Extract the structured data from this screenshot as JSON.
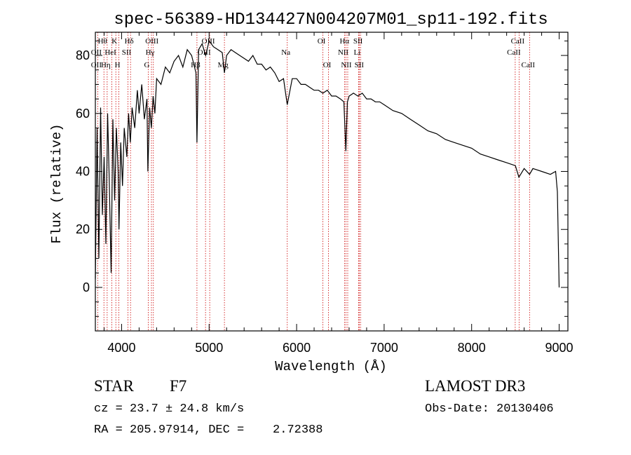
{
  "chart_data": {
    "type": "line",
    "title": "spec-56389-HD134427N004207M01_sp11-192.fits",
    "xlabel": "Wavelength (Å)",
    "ylabel": "Flux (relative)",
    "xlim": [
      3700,
      9100
    ],
    "ylim": [
      -15,
      88
    ],
    "xticks": [
      4000,
      5000,
      6000,
      7000,
      8000,
      9000
    ],
    "yticks": [
      0,
      20,
      40,
      60,
      80
    ],
    "series": [
      {
        "name": "spectrum",
        "x": [
          3700,
          3720,
          3740,
          3760,
          3780,
          3800,
          3820,
          3840,
          3860,
          3880,
          3900,
          3920,
          3940,
          3960,
          3970,
          3990,
          4010,
          4030,
          4060,
          4080,
          4100,
          4120,
          4150,
          4180,
          4200,
          4230,
          4260,
          4290,
          4300,
          4320,
          4340,
          4360,
          4380,
          4400,
          4450,
          4500,
          4550,
          4600,
          4650,
          4700,
          4750,
          4800,
          4850,
          4861,
          4880,
          4920,
          4960,
          5000,
          5050,
          5100,
          5150,
          5175,
          5200,
          5250,
          5300,
          5350,
          5400,
          5450,
          5500,
          5550,
          5600,
          5650,
          5700,
          5750,
          5800,
          5850,
          5893,
          5950,
          6000,
          6050,
          6100,
          6150,
          6200,
          6250,
          6300,
          6350,
          6400,
          6450,
          6500,
          6540,
          6563,
          6580,
          6600,
          6650,
          6700,
          6750,
          6800,
          6850,
          6900,
          6950,
          7000,
          7100,
          7200,
          7300,
          7400,
          7500,
          7600,
          7700,
          7800,
          7900,
          8000,
          8100,
          8200,
          8300,
          8400,
          8500,
          8540,
          8600,
          8662,
          8700,
          8800,
          8900,
          8960,
          8980,
          9000
        ],
        "y": [
          3,
          55,
          10,
          62,
          25,
          45,
          15,
          60,
          35,
          5,
          58,
          30,
          55,
          40,
          20,
          50,
          35,
          55,
          45,
          60,
          50,
          62,
          55,
          68,
          60,
          70,
          58,
          65,
          40,
          62,
          55,
          66,
          60,
          72,
          70,
          76,
          74,
          78,
          80,
          76,
          82,
          80,
          74,
          50,
          82,
          84,
          80,
          85,
          83,
          82,
          81,
          74,
          80,
          82,
          81,
          80,
          79,
          78,
          80,
          77,
          77,
          75,
          76,
          74,
          71,
          72,
          63,
          72,
          72,
          70,
          70,
          69,
          68,
          68,
          67,
          68,
          66,
          66,
          65,
          64,
          47,
          64,
          66,
          67,
          66,
          67,
          65,
          65,
          64,
          64,
          63,
          61,
          60,
          58,
          56,
          54,
          53,
          51,
          50,
          49,
          48,
          46,
          45,
          44,
          43,
          42,
          38,
          41,
          39,
          41,
          40,
          39,
          40,
          33,
          0
        ]
      }
    ],
    "lines": [
      {
        "name": "Hθ",
        "x": 3798,
        "row": 0
      },
      {
        "name": "OII",
        "x": 3727,
        "row": 1
      },
      {
        "name": "OII",
        "x": 3727,
        "row": 2
      },
      {
        "name": "Hη",
        "x": 3835,
        "row": 2
      },
      {
        "name": "K",
        "x": 3934,
        "row": 0
      },
      {
        "name": "HeI",
        "x": 3889,
        "row": 1
      },
      {
        "name": "H",
        "x": 3969,
        "row": 2
      },
      {
        "name": "Hδ",
        "x": 4102,
        "row": 0
      },
      {
        "name": "SII",
        "x": 4072,
        "row": 1
      },
      {
        "name": "OIII",
        "x": 4363,
        "row": 0
      },
      {
        "name": "Hγ",
        "x": 4341,
        "row": 1
      },
      {
        "name": "G",
        "x": 4305,
        "row": 2
      },
      {
        "name": "OIII",
        "x": 5007,
        "row": 0
      },
      {
        "name": "OIII",
        "x": 4959,
        "row": 1
      },
      {
        "name": "Hβ",
        "x": 4861,
        "row": 2
      },
      {
        "name": "Mg",
        "x": 5175,
        "row": 2
      },
      {
        "name": "Na",
        "x": 5893,
        "row": 1
      },
      {
        "name": "OI",
        "x": 6300,
        "row": 0
      },
      {
        "name": "OI",
        "x": 6364,
        "row": 2
      },
      {
        "name": "Hα",
        "x": 6563,
        "row": 0
      },
      {
        "name": "NII",
        "x": 6548,
        "row": 1
      },
      {
        "name": "NII",
        "x": 6584,
        "row": 2
      },
      {
        "name": "SII",
        "x": 6717,
        "row": 0
      },
      {
        "name": "Li",
        "x": 6708,
        "row": 1
      },
      {
        "name": "SII",
        "x": 6731,
        "row": 2
      },
      {
        "name": "CaII",
        "x": 8542,
        "row": 0
      },
      {
        "name": "CaII",
        "x": 8498,
        "row": 1
      },
      {
        "name": "CaII",
        "x": 8662,
        "row": 2
      }
    ]
  },
  "footer": {
    "object_type": "STAR",
    "subclass": "F7",
    "survey": "LAMOST DR3",
    "redshift": "cz = 23.7 ± 24.8 km/s",
    "obs_date": "Obs-Date: 20130406",
    "coords": "RA = 205.97914, DEC =    2.72388"
  },
  "colors": {
    "spectrum": "#000000",
    "line_marker": "#cc0000",
    "axis": "#000000",
    "background": "#ffffff"
  }
}
